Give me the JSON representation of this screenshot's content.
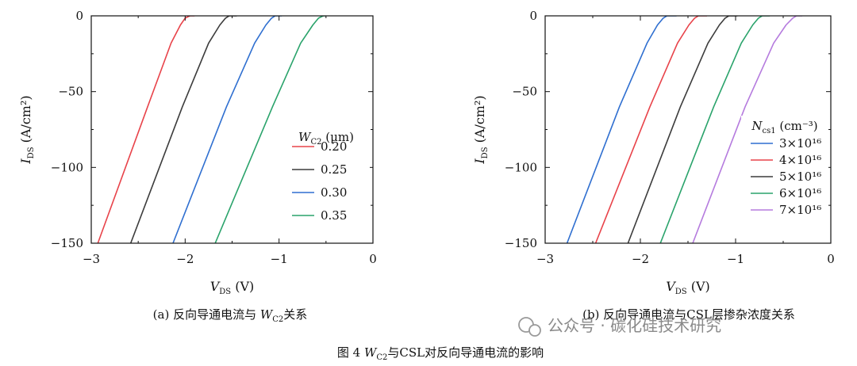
{
  "figure_caption": {
    "prefix": "图 4 ",
    "sym": "W",
    "sub": "C2",
    "rest": "与CSL对反向导通电流的影响"
  },
  "watermark": "公众号 · 碳化硅技术研究",
  "chart_data": [
    {
      "type": "line",
      "caption": {
        "prefix": "(a) 反向导通电流与 ",
        "sym": "W",
        "sub": "C2",
        "rest": "关系"
      },
      "xlabel": {
        "sym": "V",
        "sub": "DS",
        "unit": " (V)"
      },
      "ylabel": {
        "sym": "I",
        "sub": "DS",
        "unit": " (A/cm²)"
      },
      "xlim": [
        -3,
        0
      ],
      "ylim": [
        -150,
        0
      ],
      "xticks": [
        "−3",
        "−2",
        "−1",
        "0"
      ],
      "yticks": [
        "0",
        "−50",
        "−100",
        "−150"
      ],
      "legend": {
        "title_sym": "W",
        "title_sub": "C2",
        "title_unit": " (μm)",
        "position": "right"
      },
      "series": [
        {
          "name": "0.20",
          "color": "#e8434a",
          "x": [
            -2.93,
            -2.4,
            -2.15,
            -2.05,
            -2.0,
            -1.95,
            -1.9
          ],
          "y": [
            -150,
            -60,
            -18,
            -6,
            -1.5,
            0,
            0
          ]
        },
        {
          "name": "0.25",
          "color": "#3c3c3c",
          "x": [
            -2.58,
            -2.03,
            -1.75,
            -1.63,
            -1.57,
            -1.53,
            -1.45
          ],
          "y": [
            -150,
            -60,
            -18,
            -6,
            -1.5,
            0,
            0
          ]
        },
        {
          "name": "0.30",
          "color": "#2f6fd0",
          "x": [
            -2.13,
            -1.56,
            -1.26,
            -1.14,
            -1.08,
            -1.04,
            -0.97
          ],
          "y": [
            -150,
            -60,
            -18,
            -6,
            -1.5,
            0,
            0
          ]
        },
        {
          "name": "0.35",
          "color": "#2aa36b",
          "x": [
            -1.68,
            -1.07,
            -0.77,
            -0.64,
            -0.58,
            -0.53,
            -0.5
          ],
          "y": [
            -150,
            -60,
            -18,
            -6,
            -1.5,
            0,
            0
          ]
        }
      ]
    },
    {
      "type": "line",
      "caption": {
        "text": "(b) 反向导通电流与CSL层掺杂浓度关系"
      },
      "xlabel": {
        "sym": "V",
        "sub": "DS",
        "unit": " (V)"
      },
      "ylabel": {
        "sym": "I",
        "sub": "DS",
        "unit": " (A/cm²)"
      },
      "xlim": [
        -3,
        0
      ],
      "ylim": [
        -150,
        0
      ],
      "xticks": [
        "−3",
        "−2",
        "−1",
        "0"
      ],
      "yticks": [
        "0",
        "−50",
        "−100",
        "−150"
      ],
      "legend": {
        "title_sym": "N",
        "title_sub": "cs1",
        "title_unit": " (cm⁻³)",
        "position": "right"
      },
      "series": [
        {
          "name": "3×10¹⁶",
          "color": "#2f6fd0",
          "x": [
            -2.77,
            -2.22,
            -1.93,
            -1.82,
            -1.76,
            -1.72,
            -1.62
          ],
          "y": [
            -150,
            -60,
            -18,
            -6,
            -1.5,
            0,
            0
          ]
        },
        {
          "name": "4×10¹⁶",
          "color": "#e8434a",
          "x": [
            -2.47,
            -1.9,
            -1.61,
            -1.49,
            -1.43,
            -1.39,
            -1.3
          ],
          "y": [
            -150,
            -60,
            -18,
            -6,
            -1.5,
            0,
            0
          ]
        },
        {
          "name": "5×10¹⁶",
          "color": "#3c3c3c",
          "x": [
            -2.13,
            -1.58,
            -1.29,
            -1.17,
            -1.11,
            -1.07,
            -0.98
          ],
          "y": [
            -150,
            -60,
            -18,
            -6,
            -1.5,
            0,
            0
          ]
        },
        {
          "name": "6×10¹⁶",
          "color": "#2aa36b",
          "x": [
            -1.79,
            -1.23,
            -0.94,
            -0.82,
            -0.76,
            -0.72,
            -0.64
          ],
          "y": [
            -150,
            -60,
            -18,
            -6,
            -1.5,
            0,
            0
          ]
        },
        {
          "name": "7×10¹⁶",
          "color": "#b57bde",
          "x": [
            -1.45,
            -0.9,
            -0.6,
            -0.47,
            -0.4,
            -0.36,
            -0.3
          ],
          "y": [
            -150,
            -60,
            -18,
            -6,
            -1.5,
            0,
            0
          ]
        }
      ]
    }
  ]
}
